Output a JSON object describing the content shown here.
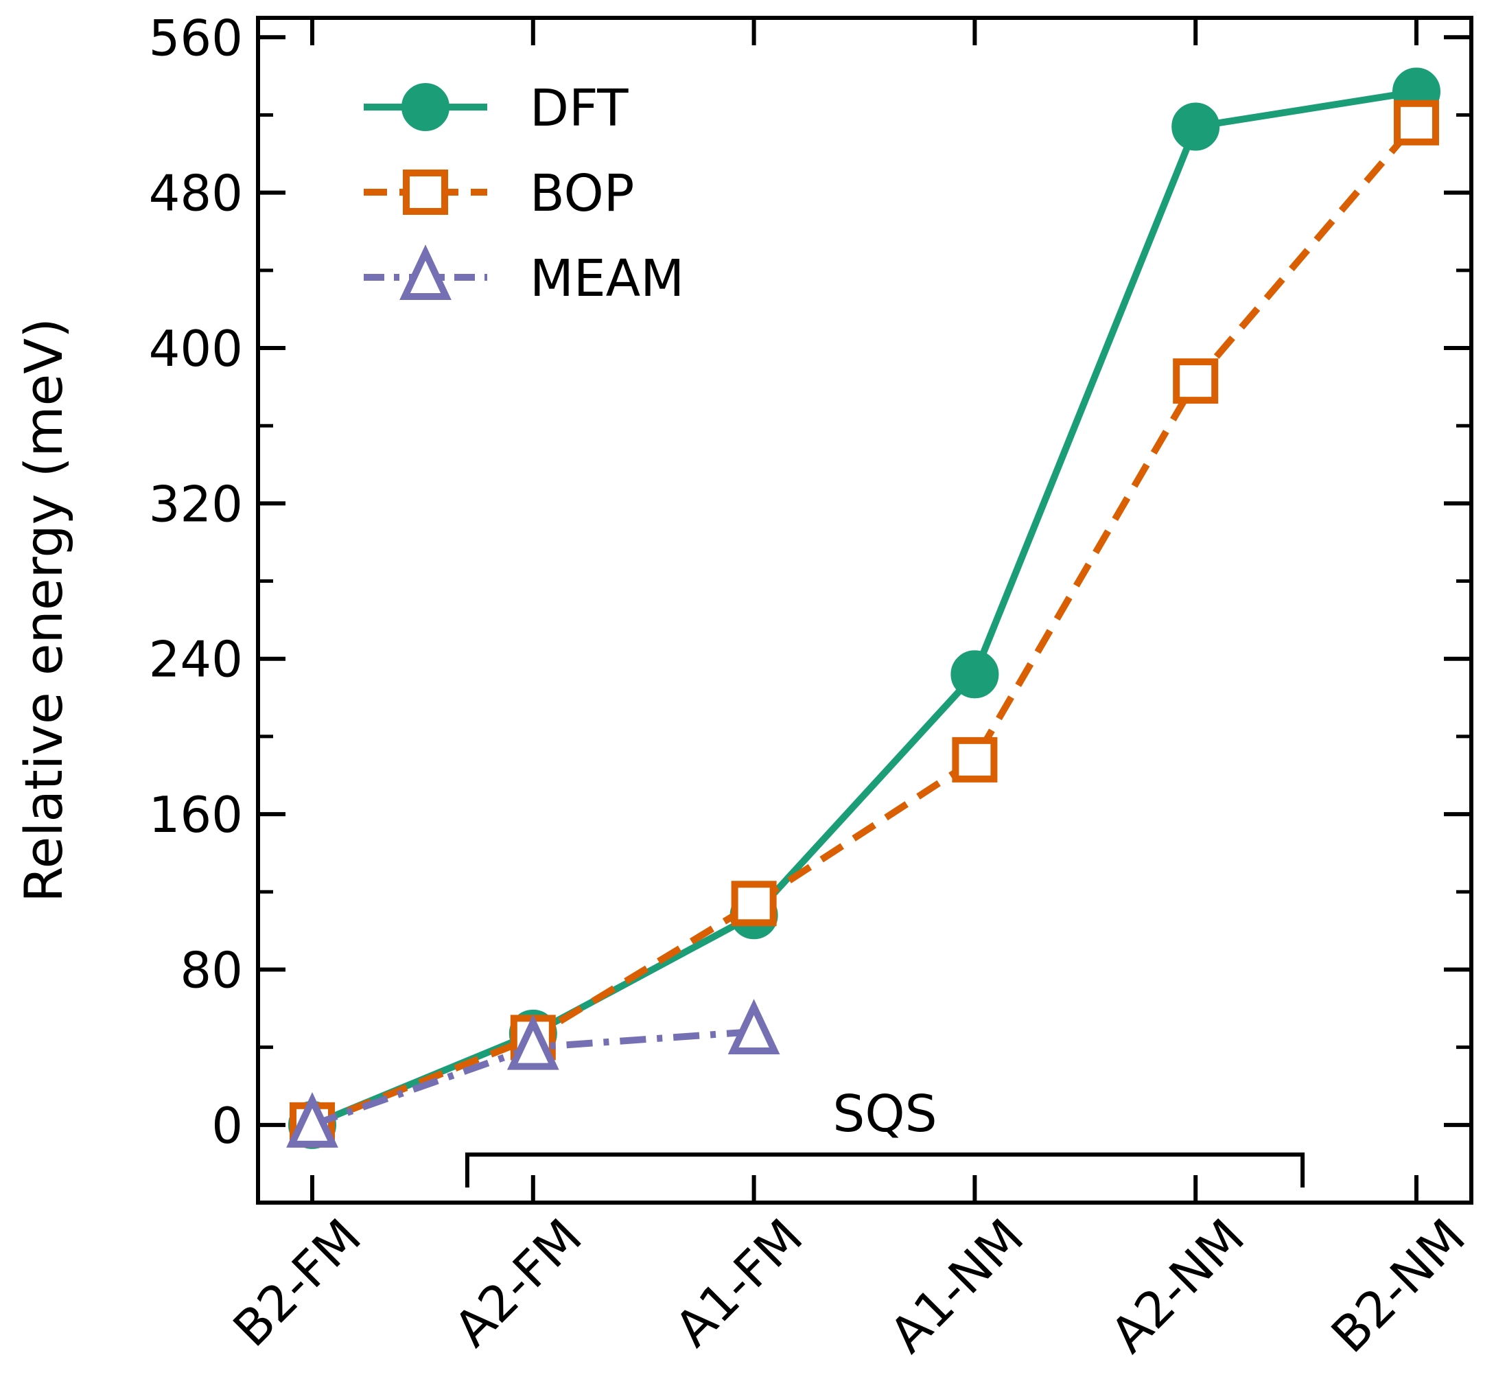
{
  "chart_data": {
    "type": "line",
    "title": "",
    "xlabel": "",
    "ylabel": "Relative energy (meV)",
    "categories": [
      "B2-FM",
      "A2-FM",
      "A1-FM",
      "A1-NM",
      "A2-NM",
      "B2-NM"
    ],
    "ylim": [
      -40,
      570
    ],
    "yticks": [
      0,
      80,
      160,
      240,
      320,
      400,
      480,
      560
    ],
    "yticks_minor": [
      40,
      120,
      200,
      280,
      360,
      440,
      520
    ],
    "grid": false,
    "legend_position": "top-left",
    "series": [
      {
        "name": "DFT",
        "values": [
          0,
          47,
          108,
          232,
          514,
          532
        ],
        "color": "#1b9e77",
        "marker": "filled-circle",
        "linestyle": "solid"
      },
      {
        "name": "BOP",
        "values": [
          0,
          45,
          114,
          188,
          383,
          516
        ],
        "color": "#d95f02",
        "marker": "open-square",
        "linestyle": "dashed"
      },
      {
        "name": "MEAM",
        "values": [
          0,
          40,
          48,
          null,
          null,
          null
        ],
        "color": "#7570b3",
        "marker": "open-triangle",
        "linestyle": "dashdot"
      }
    ],
    "annotations": [
      {
        "text": "SQS",
        "type": "bracket",
        "from_category": "A2-FM",
        "to_category": "A2-NM"
      }
    ]
  }
}
